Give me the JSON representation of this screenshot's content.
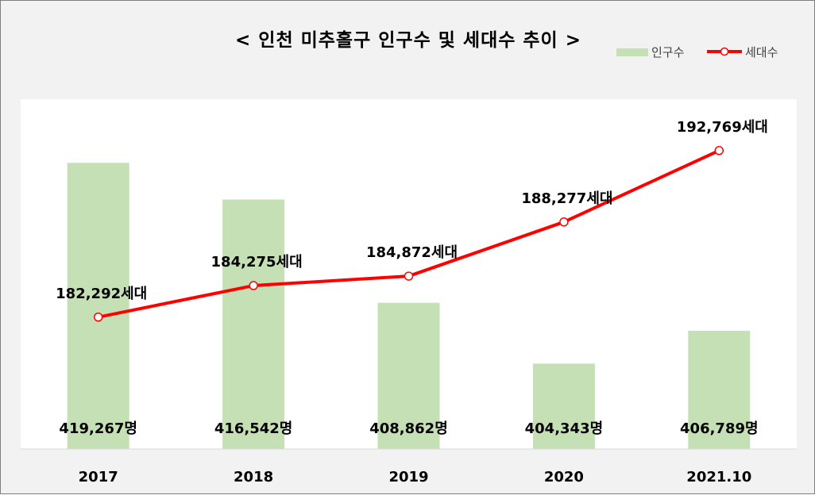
{
  "title": "< 인천 미추홀구 인구수 및 세대수 추이 >",
  "legend": {
    "bar_label": "인구수",
    "line_label": "세대수"
  },
  "colors": {
    "bar": "#c5e0b4",
    "line": "#ff0000",
    "background": "#f2f2f2",
    "plot": "#ffffff"
  },
  "chart_data": {
    "type": "bar",
    "title": "< 인천 미추홀구 인구수 및 세대수 추이 >",
    "categories": [
      "2017",
      "2018",
      "2019",
      "2020",
      "2021.10"
    ],
    "series": [
      {
        "name": "인구수",
        "type": "bar",
        "axis": "primary",
        "values": [
          419267,
          416542,
          408862,
          404343,
          406789
        ],
        "labels": [
          "419,267명",
          "416,542명",
          "408,862명",
          "404,343명",
          "406,789명"
        ]
      },
      {
        "name": "세대수",
        "type": "line",
        "axis": "secondary",
        "values": [
          182292,
          184275,
          184872,
          188277,
          192769
        ],
        "labels": [
          "182,292세대",
          "184,275세대",
          "184,872세대",
          "188,277세대",
          "192,769세대"
        ]
      }
    ],
    "primary_ylim": [
      398000,
      424000
    ],
    "secondary_ylim": [
      174000,
      196000
    ],
    "grid": false,
    "legend_position": "top-right"
  }
}
